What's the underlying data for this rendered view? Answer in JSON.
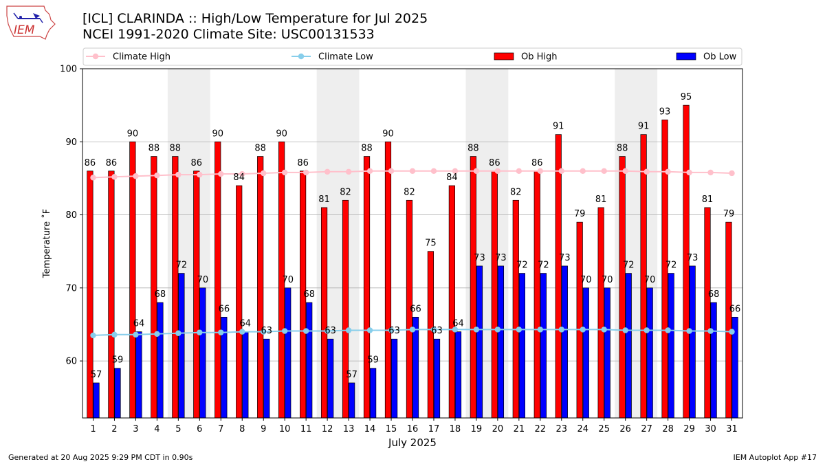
{
  "logo": {
    "text": "IEM"
  },
  "title_line1": "[ICL] CLARINDA :: High/Low Temperature for Jul 2025",
  "title_line2": "NCEI 1991-2020 Climate Site: USC00131533",
  "footer_left": "Generated at 20 Aug 2025 9:29 PM CDT in 0.90s",
  "footer_right": "IEM Autoplot App #17",
  "chart_data": {
    "type": "bar",
    "xlabel": "July 2025",
    "ylabel": "Temperature ˚F",
    "ylim": [
      52.2,
      100
    ],
    "yticks": [
      60,
      70,
      80,
      90,
      100
    ],
    "grid": true,
    "legend_position": "top",
    "categories": [
      "1",
      "2",
      "3",
      "4",
      "5",
      "6",
      "7",
      "8",
      "9",
      "10",
      "11",
      "12",
      "13",
      "14",
      "15",
      "16",
      "17",
      "18",
      "19",
      "20",
      "21",
      "22",
      "23",
      "24",
      "25",
      "26",
      "27",
      "28",
      "29",
      "30",
      "31"
    ],
    "weekend_days": [
      5,
      6,
      12,
      13,
      19,
      20,
      26,
      27
    ],
    "colors": {
      "ob_high": "#ff0000",
      "ob_low": "#0000ff",
      "climate_high": "#ffc0cb",
      "climate_low": "#87ceeb",
      "weekend_shade": "#eeeeee",
      "grid": "#b0b0b0"
    },
    "series": [
      {
        "name": "Ob High",
        "type": "bar",
        "values": [
          86,
          86,
          90,
          88,
          88,
          86,
          90,
          84,
          88,
          90,
          86,
          81,
          82,
          88,
          90,
          82,
          75,
          84,
          88,
          86,
          82,
          86,
          91,
          79,
          81,
          88,
          91,
          93,
          95,
          81,
          79
        ]
      },
      {
        "name": "Ob Low",
        "type": "bar",
        "values": [
          57,
          59,
          64,
          68,
          72,
          70,
          66,
          64,
          63,
          70,
          68,
          63,
          57,
          59,
          63,
          66,
          63,
          64,
          73,
          73,
          72,
          72,
          73,
          70,
          70,
          72,
          70,
          72,
          73,
          68,
          66
        ]
      },
      {
        "name": "Climate High",
        "type": "line",
        "values": [
          85.1,
          85.2,
          85.3,
          85.4,
          85.5,
          85.5,
          85.6,
          85.6,
          85.7,
          85.8,
          85.8,
          85.9,
          85.9,
          86.0,
          86.0,
          86.0,
          86.0,
          86.0,
          86.0,
          86.0,
          86.0,
          86.0,
          86.0,
          86.0,
          86.0,
          86.0,
          85.9,
          85.9,
          85.8,
          85.8,
          85.7
        ]
      },
      {
        "name": "Climate Low",
        "type": "line",
        "values": [
          63.5,
          63.6,
          63.6,
          63.7,
          63.8,
          63.9,
          63.9,
          64.0,
          64.0,
          64.1,
          64.1,
          64.1,
          64.2,
          64.2,
          64.2,
          64.3,
          64.3,
          64.3,
          64.3,
          64.3,
          64.3,
          64.3,
          64.3,
          64.3,
          64.3,
          64.2,
          64.2,
          64.2,
          64.1,
          64.1,
          64.0
        ]
      }
    ]
  }
}
